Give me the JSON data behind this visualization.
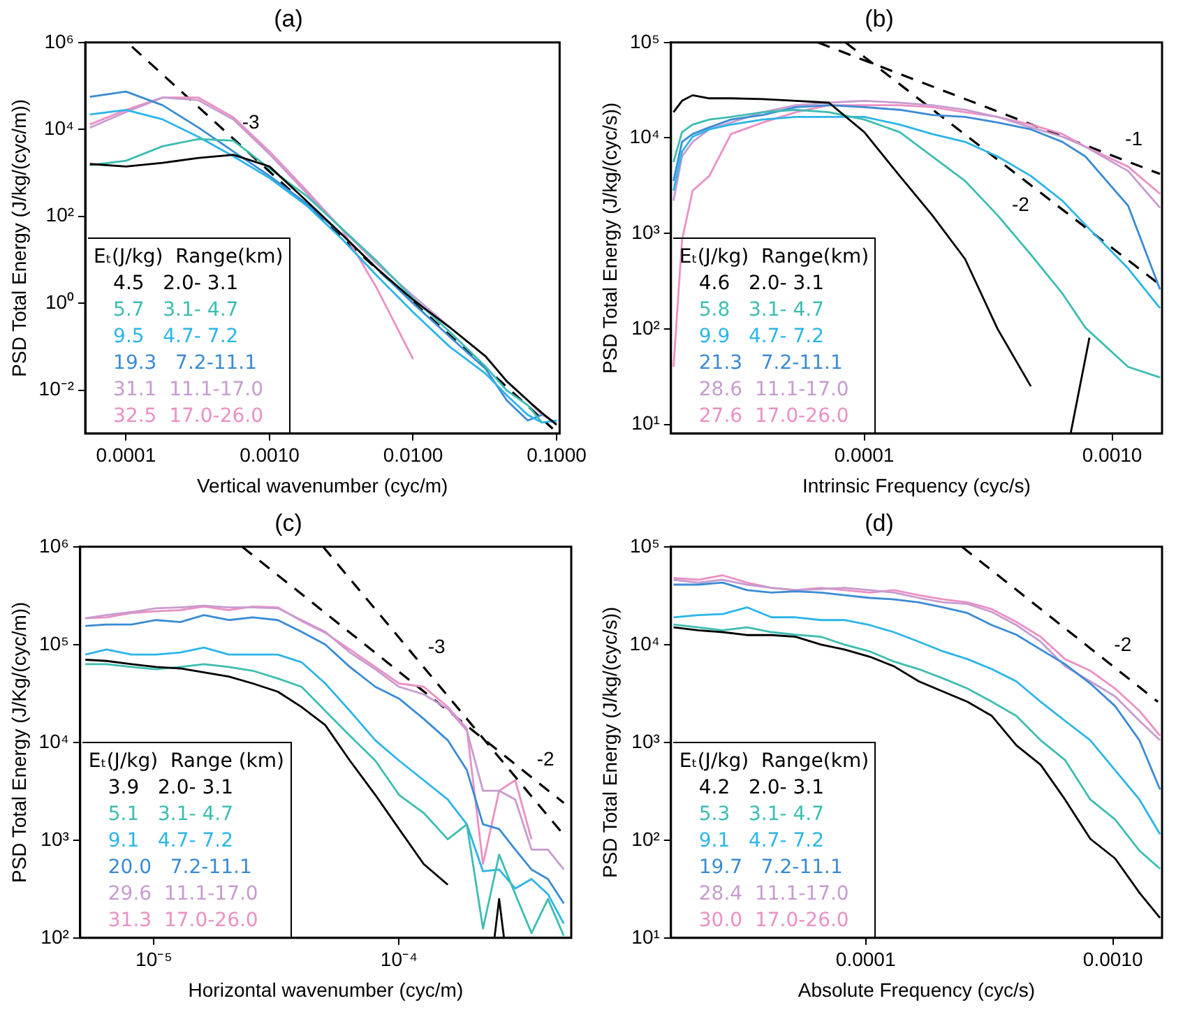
{
  "chart_data": [
    {
      "type": "line",
      "title": "(a)",
      "xlabel": "Vertical wavenumber (cyc/m)",
      "ylabel": "PSD Total Energy (J/kg/(cyc/m))",
      "log": "xy",
      "legend": "bottom left",
      "legend_title": "Eₜ(J/kg)  Range(km)",
      "xlim": [
        5.2e-05,
        0.105
      ],
      "ylim": [
        0.001,
        1000000
      ],
      "xticks": [
        {
          "value": 0.0001,
          "label": "0.0001"
        },
        {
          "value": 0.001,
          "label": "0.0010"
        },
        {
          "value": 0.01,
          "label": "0.0100"
        },
        {
          "value": 0.1,
          "label": "0.1000"
        }
      ],
      "yticks": [
        {
          "value": 0.01,
          "label": "10⁻²"
        },
        {
          "value": 1,
          "label": "10⁰"
        },
        {
          "value": 100,
          "label": "10²"
        },
        {
          "value": 10000,
          "label": "10⁴"
        },
        {
          "value": 1000000,
          "label": "10⁶"
        }
      ],
      "x": [
        5.6e-05,
        0.0001,
        0.00018,
        0.00032,
        0.00056,
        0.001,
        0.0018,
        0.0032,
        0.0056,
        0.01,
        0.018,
        0.032,
        0.045,
        0.063,
        0.079,
        0.1
      ],
      "series": [
        {
          "name": "4.5   2.0- 3.1",
          "color": "#000000",
          "values": [
            1600,
            1400,
            1700,
            2200,
            2600,
            1400,
            230,
            38,
            6.3,
            1.2,
            0.28,
            0.06,
            0.016,
            0.0058,
            0.003,
            0.0016
          ]
        },
        {
          "name": "5.7   3.1- 4.7",
          "color": "#3dbdb1",
          "values": [
            1500,
            1900,
            4100,
            6000,
            5500,
            1260,
            300,
            52,
            9.3,
            1.3,
            0.22,
            0.035,
            0.0098,
            0.0045,
            0.0018,
            null
          ]
        },
        {
          "name": "9.5   4.7- 7.2",
          "color": "#2bb5e8",
          "values": [
            22000,
            28000,
            17000,
            6700,
            2400,
            760,
            180,
            30,
            4.3,
            0.62,
            0.1,
            0.024,
            0.0076,
            0.0027,
            0.0018,
            0.002
          ]
        },
        {
          "name": "19.3   7.2-11.1",
          "color": "#3a8bd4",
          "values": [
            56000,
            74000,
            36000,
            11000,
            3100,
            850,
            200,
            38,
            6.3,
            1.0,
            0.17,
            0.031,
            0.0058,
            0.002,
            0.0027,
            null
          ]
        },
        {
          "name": "31.1  11.1-17.0",
          "color": "#c79bd0",
          "values": [
            11000,
            25000,
            54000,
            47000,
            17000,
            2700,
            350,
            50,
            8.1,
            1.5,
            0.28,
            0.06,
            0.016,
            0.0058,
            0.0027,
            0.0018
          ]
        },
        {
          "name": "32.5  17.0-26.0",
          "color": "#eb90c3",
          "values": [
            13000,
            28000,
            54000,
            54000,
            19000,
            3100,
            400,
            50,
            2.2,
            0.052,
            null,
            null,
            null,
            null,
            null,
            null
          ]
        },
        {
          "type": "line",
          "color": "#000000",
          "line_style": "dashed",
          "x": [
            0.00011,
            0.094
          ],
          "values": [
            800000,
            0.0013
          ]
        }
      ],
      "annotations": [
        {
          "text": "-3",
          "x": 0.00074,
          "y": 14000
        }
      ]
    },
    {
      "type": "line",
      "title": "(b)",
      "xlabel": "Intrinsic Frequency (cyc/s)",
      "ylabel": "PSD Total Energy (J/kg/(cyc/s))",
      "log": "xy",
      "legend": "bottom left",
      "legend_title": "Eₜ(J/kg)  Range(km)",
      "xlim": [
        1.66e-05,
        0.00159
      ],
      "ylim": [
        8,
        100000
      ],
      "xticks": [
        {
          "value": 0.0001,
          "label": "0.0001"
        },
        {
          "value": 0.001,
          "label": "0.0010"
        }
      ],
      "yticks": [
        {
          "value": 10,
          "label": "10¹"
        },
        {
          "value": 100,
          "label": "10²"
        },
        {
          "value": 1000,
          "label": "10³"
        },
        {
          "value": 10000,
          "label": "10⁴"
        },
        {
          "value": 100000,
          "label": "10⁵"
        }
      ],
      "x": [
        1.7e-05,
        1.84e-05,
        2.03e-05,
        2.37e-05,
        2.9e-05,
        3.9e-05,
        5.3e-05,
        7.2e-05,
        0.0001,
        0.000139,
        0.000188,
        0.000255,
        0.000345,
        0.00047,
        0.00063,
        0.00078,
        0.00116,
        0.00156
      ],
      "series": [
        {
          "name": "4.6   2.0- 3.1",
          "color": "#000000",
          "values": [
            18600,
            24500,
            28000,
            26000,
            26000,
            25500,
            24500,
            23400,
            11500,
            4000,
            1550,
            540,
            100,
            25,
            null,
            null,
            null,
            null
          ]
        },
        {
          "color": "#000000",
          "x": [
            0.00068,
            0.00081
          ],
          "values": [
            8,
            81
          ]
        },
        {
          "name": "5.8   3.1- 4.7",
          "color": "#3dbdb1",
          "values": [
            5600,
            11500,
            13800,
            15600,
            16600,
            18600,
            19700,
            18600,
            15600,
            11500,
            6400,
            3550,
            1550,
            600,
            235,
            103,
            40,
            31
          ]
        },
        {
          "name": "9.9   4.7- 7.2",
          "color": "#2bb5e8",
          "values": [
            2800,
            7200,
            10300,
            12300,
            13800,
            15600,
            16600,
            16600,
            16600,
            13800,
            11000,
            9100,
            6400,
            4000,
            2200,
            1230,
            430,
            165
          ]
        },
        {
          "name": "21.3   7.2-11.1",
          "color": "#3a8bd4",
          "values": [
            3550,
            9100,
            11000,
            12900,
            15600,
            17400,
            21000,
            22000,
            21000,
            19700,
            17400,
            16600,
            14500,
            12300,
            9100,
            6400,
            1950,
            260
          ]
        },
        {
          "name": "28.6  11.1-17.0",
          "color": "#c79bd0",
          "values": [
            2200,
            6400,
            9100,
            12300,
            14500,
            18600,
            22000,
            23400,
            24500,
            23400,
            22000,
            19700,
            16600,
            12900,
            10300,
            8100,
            4500,
            1860
          ]
        },
        {
          "name": "27.6  17.0-26.0",
          "color": "#eb90c3",
          "values": [
            40,
            850,
            2800,
            4000,
            11000,
            14500,
            18600,
            22000,
            22000,
            22000,
            21000,
            18600,
            16600,
            13800,
            11000,
            8100,
            5000,
            2600
          ]
        },
        {
          "type": "line",
          "color": "#000000",
          "line_style": "dashed",
          "x": [
            6.5e-05,
            0.00156
          ],
          "values": [
            100000,
            4200
          ]
        },
        {
          "type": "line",
          "color": "#000000",
          "line_style": "dashed",
          "x": [
            8.4e-05,
            0.00156
          ],
          "values": [
            100000,
            290
          ]
        }
      ],
      "annotations": [
        "-1",
        "-2"
      ]
    },
    {
      "type": "line",
      "title": "(c)",
      "xlabel": "Horizontal wavenumber (cyc/m)",
      "ylabel": "PSD Total Energy (J/Kg/(cyc/m))",
      "log": "xy",
      "legend": "bottom left",
      "legend_title": "Eₜ(J/kg)  Range (km)",
      "xlim": [
        5e-06,
        0.000504
      ],
      "ylim": [
        100,
        1000000
      ],
      "xticks": [
        {
          "value": 1e-05,
          "label": "10⁻⁵"
        },
        {
          "value": 0.0001,
          "label": "10⁻⁴"
        }
      ],
      "yticks": [
        {
          "value": 100,
          "label": "10²"
        },
        {
          "value": 1000,
          "label": "10³"
        },
        {
          "value": 10000,
          "label": "10⁴"
        },
        {
          "value": 100000,
          "label": "10⁵"
        },
        {
          "value": 1000000,
          "label": "10⁶"
        }
      ],
      "x": [
        5.25e-06,
        6.4e-06,
        8.1e-06,
        1.02e-05,
        1.28e-05,
        1.6e-05,
        2.02e-05,
        2.53e-05,
        3.2e-05,
        4e-05,
        5e-05,
        6.3e-05,
        8e-05,
        0.0001,
        0.000126,
        0.000158,
        0.000189,
        0.00022,
        0.000256,
        0.000298,
        0.000347,
        0.000405,
        0.00047
      ],
      "series": [
        {
          "name": "3.9   2.0- 3.1",
          "color": "#000000",
          "values": [
            70000,
            68000,
            63000,
            59000,
            57000,
            52000,
            47000,
            40000,
            33000,
            23000,
            15000,
            6500,
            2900,
            1300,
            570,
            350,
            null,
            null,
            null,
            null,
            null,
            null,
            null
          ]
        },
        {
          "color": "#000000",
          "x": [
            0.000245,
            0.000256,
            0.000268
          ],
          "values": [
            100,
            250,
            100
          ]
        },
        {
          "name": "5.1   3.1- 4.7",
          "color": "#3dbdb1",
          "values": [
            63000,
            63000,
            59000,
            56000,
            59000,
            63000,
            59000,
            54000,
            45000,
            37000,
            21000,
            11700,
            6500,
            2900,
            1900,
            1020,
            1450,
            125,
            710,
            280,
            112,
            250,
            105
          ]
        },
        {
          "name": "9.1   4.7- 7.2",
          "color": "#2bb5e8",
          "values": [
            79000,
            89000,
            79000,
            79000,
            83000,
            93000,
            79000,
            79000,
            79000,
            66000,
            40000,
            21000,
            10500,
            6500,
            4100,
            2600,
            1450,
            480,
            500,
            320,
            400,
            280,
            140
          ]
        },
        {
          "name": "20.0   7.2-11.1",
          "color": "#3a8bd4",
          "values": [
            155000,
            160000,
            160000,
            178000,
            170000,
            200000,
            178000,
            190000,
            178000,
            135000,
            100000,
            59000,
            37000,
            28000,
            17400,
            10500,
            5200,
            1450,
            1300,
            800,
            500,
            400,
            225
          ]
        },
        {
          "name": "29.6  11.1-17.0",
          "color": "#c79bd0",
          "values": [
            186000,
            200000,
            215000,
            235000,
            240000,
            250000,
            240000,
            240000,
            235000,
            178000,
            135000,
            83000,
            56000,
            37000,
            31000,
            22000,
            13200,
            3200,
            3200,
            2600,
            800,
            800,
            500
          ]
        },
        {
          "name": "31.3  17.0-26.0",
          "color": "#eb90c3",
          "values": [
            186000,
            190000,
            210000,
            219000,
            225000,
            245000,
            225000,
            245000,
            240000,
            174000,
            132000,
            89000,
            59000,
            40000,
            37000,
            23000,
            13800,
            570,
            3200,
            4100,
            1020,
            null,
            null
          ]
        },
        {
          "type": "line",
          "color": "#000000",
          "line_style": "dashed",
          "x": [
            2.29e-05,
            0.00047
          ],
          "values": [
            1000000,
            2400
          ]
        },
        {
          "type": "line",
          "color": "#000000",
          "line_style": "dashed",
          "x": [
            4.9e-05,
            0.00047
          ],
          "values": [
            1000000,
            1130
          ]
        }
      ],
      "annotations": [
        "-2",
        "-3"
      ]
    },
    {
      "type": "line",
      "title": "(d)",
      "xlabel": "Absolute Frequency (cyc/s)",
      "ylabel": "PSD Total Energy (J/kg/(cyc/s))",
      "log": "xy",
      "legend": "bottom left",
      "legend_title": "Eₜ(J/kg)  Range(km)",
      "xlim": [
        1.63e-05,
        0.00158
      ],
      "ylim": [
        10,
        100000
      ],
      "xticks": [
        {
          "value": 0.0001,
          "label": "0.0001"
        },
        {
          "value": 0.001,
          "label": "0.0010"
        }
      ],
      "yticks": [
        {
          "value": 10,
          "label": "10¹"
        },
        {
          "value": 100,
          "label": "10²"
        },
        {
          "value": 1000,
          "label": "10³"
        },
        {
          "value": 10000,
          "label": "10⁴"
        },
        {
          "value": 100000,
          "label": "10⁵"
        }
      ],
      "x": [
        1.67e-05,
        2.1e-05,
        2.64e-05,
        3.31e-05,
        4.16e-05,
        5.2e-05,
        6.6e-05,
        8.2e-05,
        0.000104,
        0.00013,
        0.000164,
        0.000206,
        0.000258,
        0.000324,
        0.000407,
        0.00051,
        0.00064,
        0.00081,
        0.00102,
        0.00128,
        0.00155
      ],
      "series": [
        {
          "name": "4.2   2.0- 3.1",
          "color": "#000000",
          "values": [
            15000,
            14000,
            13400,
            12500,
            12500,
            12000,
            10000,
            8900,
            7500,
            6000,
            4200,
            3300,
            2600,
            1860,
            930,
            590,
            260,
            103,
            65,
            29,
            16
          ]
        },
        {
          "name": "5.3   3.1- 4.7",
          "color": "#3dbdb1",
          "values": [
            16000,
            15000,
            14000,
            15000,
            13400,
            12600,
            12000,
            10000,
            8500,
            6700,
            5600,
            4500,
            3550,
            2600,
            1860,
            1050,
            660,
            260,
            163,
            78,
            51
          ]
        },
        {
          "name": "9.1   4.7- 7.2",
          "color": "#2bb5e8",
          "values": [
            19000,
            20000,
            20500,
            24000,
            19000,
            19000,
            17800,
            17800,
            15800,
            13400,
            10700,
            8500,
            7100,
            5600,
            4200,
            2600,
            1660,
            1050,
            520,
            260,
            115
          ]
        },
        {
          "name": "19.7   7.2-11.1",
          "color": "#3a8bd4",
          "values": [
            41000,
            41000,
            43000,
            36000,
            34000,
            35000,
            34000,
            32000,
            30000,
            29000,
            27000,
            24000,
            21000,
            15800,
            12600,
            8900,
            6300,
            4000,
            2350,
            1050,
            330
          ]
        },
        {
          "name": "28.4  11.1-17.0",
          "color": "#c79bd0",
          "values": [
            46000,
            43000,
            46000,
            41000,
            38000,
            36000,
            37000,
            38000,
            36000,
            34000,
            30000,
            27000,
            26000,
            21500,
            15800,
            10700,
            6000,
            4200,
            2950,
            1660,
            1050
          ]
        },
        {
          "name": "30.0  17.0-26.0",
          "color": "#eb90c3",
          "values": [
            48000,
            46000,
            51000,
            43000,
            38000,
            36000,
            38000,
            36000,
            34000,
            36000,
            32000,
            29000,
            27000,
            23000,
            17000,
            12000,
            7100,
            5400,
            3550,
            2100,
            1170
          ]
        },
        {
          "type": "line",
          "color": "#000000",
          "line_style": "dashed",
          "x": [
            0.000245,
            0.00152
          ],
          "values": [
            100000,
            2600
          ]
        }
      ],
      "annotations": [
        "-2"
      ]
    }
  ]
}
